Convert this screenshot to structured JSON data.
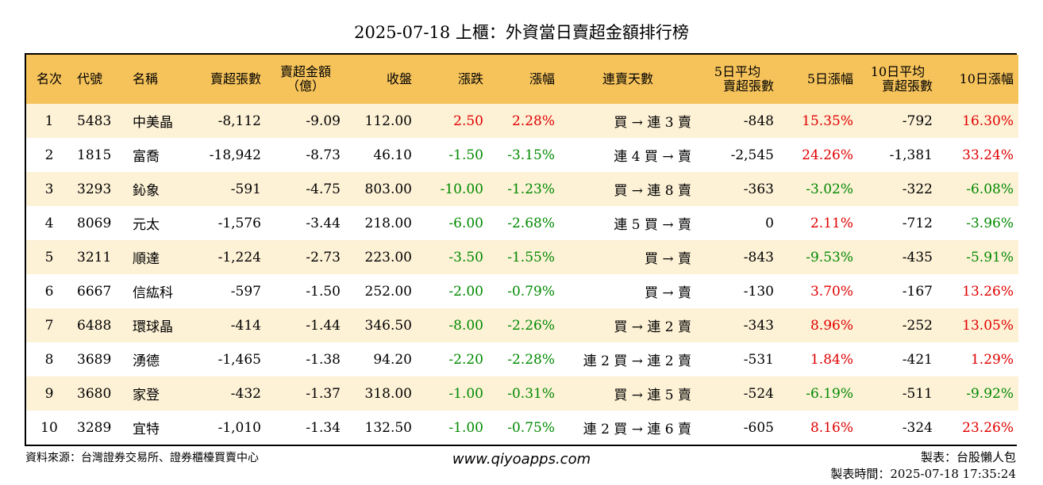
{
  "title": "2025-07-18 上櫃：外資當日賣超金額排行榜",
  "headers": {
    "rank": "名次",
    "code": "代號",
    "name": "名稱",
    "sell_shares": "賣超張數",
    "sell_amount_l1": "賣超金額",
    "sell_amount_l2": "（億）",
    "close": "收盤",
    "change": "漲跌",
    "pct": "漲幅",
    "streak": "連賣天數",
    "avg5_l1": "5日平均",
    "avg5_l2": "賣超張數",
    "pct5": "5日漲幅",
    "avg10_l1": "10日平均",
    "avg10_l2": "賣超張數",
    "pct10": "10日漲幅"
  },
  "rows": [
    {
      "rank": "1",
      "code": "5483",
      "name": "中美晶",
      "sell_shares": "-8,112",
      "amount": "-9.09",
      "close": "112.00",
      "change": "2.50",
      "change_dir": "up",
      "pct": "2.28%",
      "pct_dir": "up",
      "streak": "買 → 連 3 賣",
      "avg5": "-848",
      "pct5": "15.35%",
      "pct5_dir": "up",
      "avg10": "-792",
      "pct10": "16.30%",
      "pct10_dir": "up"
    },
    {
      "rank": "2",
      "code": "1815",
      "name": "富喬",
      "sell_shares": "-18,942",
      "amount": "-8.73",
      "close": "46.10",
      "change": "-1.50",
      "change_dir": "down",
      "pct": "-3.15%",
      "pct_dir": "down",
      "streak": "連 4 買 → 賣",
      "avg5": "-2,545",
      "pct5": "24.26%",
      "pct5_dir": "up",
      "avg10": "-1,381",
      "pct10": "33.24%",
      "pct10_dir": "up"
    },
    {
      "rank": "3",
      "code": "3293",
      "name": "鈊象",
      "sell_shares": "-591",
      "amount": "-4.75",
      "close": "803.00",
      "change": "-10.00",
      "change_dir": "down",
      "pct": "-1.23%",
      "pct_dir": "down",
      "streak": "買 → 連 8 賣",
      "avg5": "-363",
      "pct5": "-3.02%",
      "pct5_dir": "down",
      "avg10": "-322",
      "pct10": "-6.08%",
      "pct10_dir": "down"
    },
    {
      "rank": "4",
      "code": "8069",
      "name": "元太",
      "sell_shares": "-1,576",
      "amount": "-3.44",
      "close": "218.00",
      "change": "-6.00",
      "change_dir": "down",
      "pct": "-2.68%",
      "pct_dir": "down",
      "streak": "連 5 買 → 賣",
      "avg5": "0",
      "pct5": "2.11%",
      "pct5_dir": "up",
      "avg10": "-712",
      "pct10": "-3.96%",
      "pct10_dir": "down"
    },
    {
      "rank": "5",
      "code": "3211",
      "name": "順達",
      "sell_shares": "-1,224",
      "amount": "-2.73",
      "close": "223.00",
      "change": "-3.50",
      "change_dir": "down",
      "pct": "-1.55%",
      "pct_dir": "down",
      "streak": "買 → 賣",
      "avg5": "-843",
      "pct5": "-9.53%",
      "pct5_dir": "down",
      "avg10": "-435",
      "pct10": "-5.91%",
      "pct10_dir": "down"
    },
    {
      "rank": "6",
      "code": "6667",
      "name": "信紘科",
      "sell_shares": "-597",
      "amount": "-1.50",
      "close": "252.00",
      "change": "-2.00",
      "change_dir": "down",
      "pct": "-0.79%",
      "pct_dir": "down",
      "streak": "買 → 賣",
      "avg5": "-130",
      "pct5": "3.70%",
      "pct5_dir": "up",
      "avg10": "-167",
      "pct10": "13.26%",
      "pct10_dir": "up"
    },
    {
      "rank": "7",
      "code": "6488",
      "name": "環球晶",
      "sell_shares": "-414",
      "amount": "-1.44",
      "close": "346.50",
      "change": "-8.00",
      "change_dir": "down",
      "pct": "-2.26%",
      "pct_dir": "down",
      "streak": "買 → 連 2 賣",
      "avg5": "-343",
      "pct5": "8.96%",
      "pct5_dir": "up",
      "avg10": "-252",
      "pct10": "13.05%",
      "pct10_dir": "up"
    },
    {
      "rank": "8",
      "code": "3689",
      "name": "湧德",
      "sell_shares": "-1,465",
      "amount": "-1.38",
      "close": "94.20",
      "change": "-2.20",
      "change_dir": "down",
      "pct": "-2.28%",
      "pct_dir": "down",
      "streak": "連 2 買 → 連 2 賣",
      "avg5": "-531",
      "pct5": "1.84%",
      "pct5_dir": "up",
      "avg10": "-421",
      "pct10": "1.29%",
      "pct10_dir": "up"
    },
    {
      "rank": "9",
      "code": "3680",
      "name": "家登",
      "sell_shares": "-432",
      "amount": "-1.37",
      "close": "318.00",
      "change": "-1.00",
      "change_dir": "down",
      "pct": "-0.31%",
      "pct_dir": "down",
      "streak": "買 → 連 5 賣",
      "avg5": "-524",
      "pct5": "-6.19%",
      "pct5_dir": "down",
      "avg10": "-511",
      "pct10": "-9.92%",
      "pct10_dir": "down"
    },
    {
      "rank": "10",
      "code": "3289",
      "name": "宜特",
      "sell_shares": "-1,010",
      "amount": "-1.34",
      "close": "132.50",
      "change": "-1.00",
      "change_dir": "down",
      "pct": "-0.75%",
      "pct_dir": "down",
      "streak": "連 2 買 → 連 6 賣",
      "avg5": "-605",
      "pct5": "8.16%",
      "pct5_dir": "up",
      "avg10": "-324",
      "pct10": "23.26%",
      "pct10_dir": "up"
    }
  ],
  "footer": {
    "source": "資料來源：台灣證券交易所、證券櫃檯買賣中心",
    "website": "www.qiyoapps.com",
    "maker": "製表：台股懶人包",
    "made_time": "製表時間：2025-07-18 17:35:24"
  },
  "colors": {
    "header_bg": "#f6c35b",
    "stripe_bg": "#fdf1d6",
    "up": "#e00000",
    "down": "#008a00"
  }
}
